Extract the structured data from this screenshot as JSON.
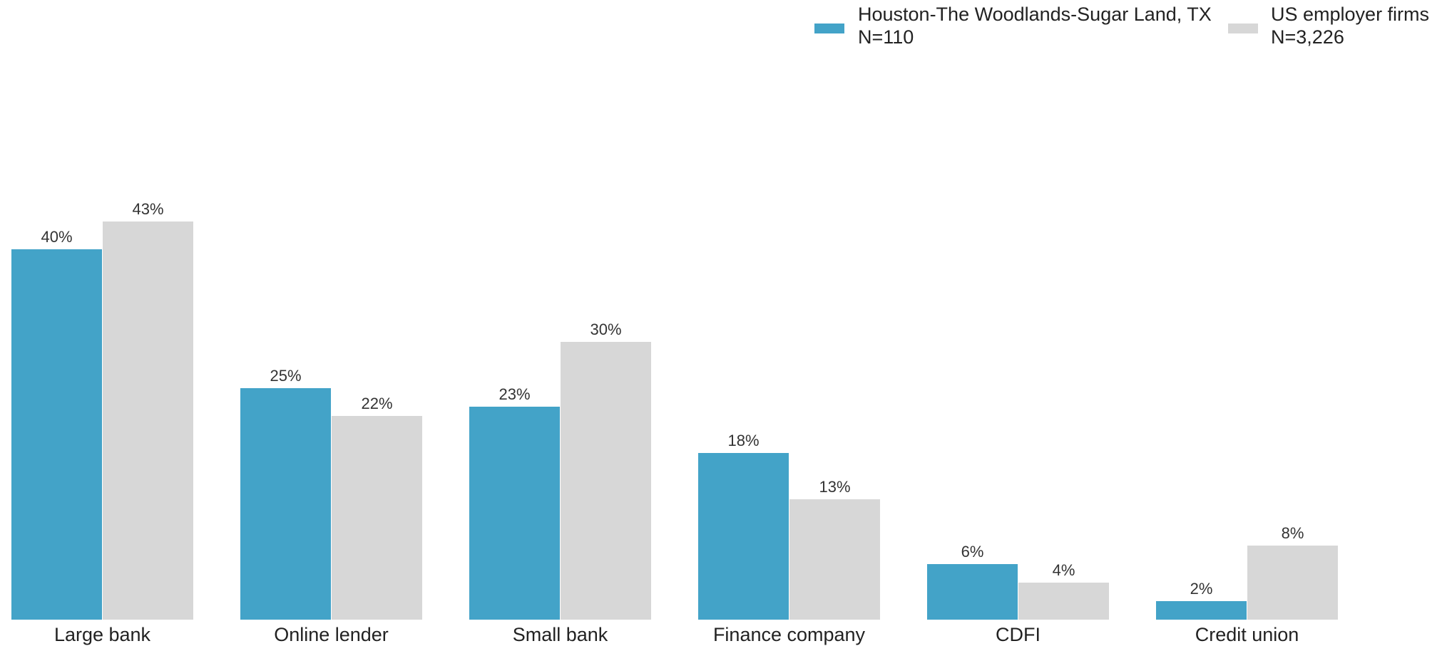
{
  "chart_data": {
    "type": "bar",
    "categories": [
      "Large bank",
      "Online lender",
      "Small bank",
      "Finance company",
      "CDFI",
      "Credit union"
    ],
    "series": [
      {
        "name": "Houston-The Woodlands-Sugar Land, TX",
        "n_label": "N=110",
        "color": "#43a3c8",
        "values": [
          40,
          25,
          23,
          18,
          6,
          2
        ],
        "labels": [
          "40%",
          "25%",
          "23%",
          "18%",
          "6%",
          "2%"
        ]
      },
      {
        "name": "US employer firms",
        "n_label": "N=3,226",
        "color": "#d7d7d7",
        "values": [
          43,
          22,
          30,
          13,
          4,
          8
        ],
        "labels": [
          "43%",
          "22%",
          "30%",
          "13%",
          "4%",
          "8%"
        ]
      }
    ],
    "title": "",
    "xlabel": "",
    "ylabel": "",
    "ylim": [
      0,
      43
    ],
    "grid": false,
    "legend_position": "top-right"
  }
}
